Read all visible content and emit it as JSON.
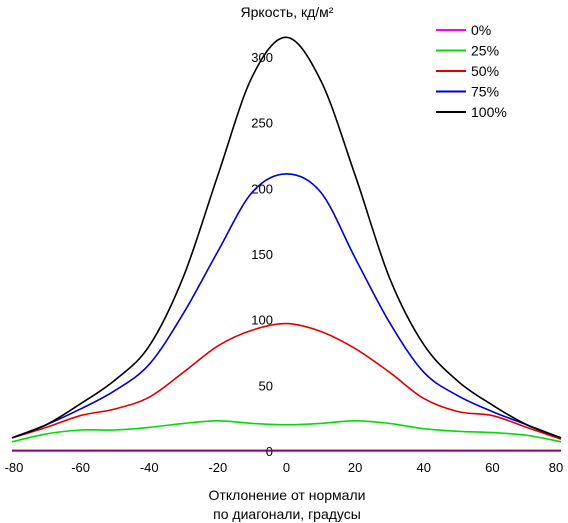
{
  "chart_data": {
    "type": "line",
    "title": "Яркость, кд/м²",
    "xlabel_line1": "Отклонение от нормали",
    "xlabel_line2": "по диагонали, градусы",
    "xlim": [
      -80,
      80
    ],
    "ylim": [
      0,
      320
    ],
    "xticks": [
      -80,
      -60,
      -40,
      -20,
      0,
      20,
      40,
      60,
      80
    ],
    "yticks": [
      0,
      50,
      100,
      150,
      200,
      250,
      300
    ],
    "grid": false,
    "legend_position": "top-right",
    "x": [
      -80,
      -70,
      -60,
      -50,
      -40,
      -30,
      -20,
      -10,
      0,
      10,
      20,
      30,
      40,
      50,
      60,
      70,
      80
    ],
    "series": [
      {
        "name": "0%",
        "color": "#ff00ff",
        "values": [
          0.5,
          0.5,
          0.5,
          0.5,
          0.5,
          0.5,
          0.5,
          0.5,
          0.5,
          0.5,
          0.5,
          0.5,
          0.5,
          0.5,
          0.5,
          0.5,
          0.5
        ]
      },
      {
        "name": "25%",
        "color": "#00dd00",
        "values": [
          7,
          13,
          16,
          16,
          18,
          21,
          23,
          21,
          20,
          21,
          23,
          21,
          17,
          15,
          14,
          12,
          7
        ]
      },
      {
        "name": "50%",
        "color": "#e00000",
        "values": [
          10,
          18,
          27,
          32,
          41,
          60,
          80,
          92,
          97,
          91,
          78,
          60,
          40,
          30,
          27,
          18,
          9
        ]
      },
      {
        "name": "75%",
        "color": "#0000cc",
        "values": [
          10,
          20,
          32,
          46,
          66,
          105,
          152,
          197,
          211,
          197,
          147,
          98,
          60,
          42,
          30,
          20,
          10
        ]
      },
      {
        "name": "100%",
        "color": "#000000",
        "values": [
          10,
          20,
          36,
          54,
          80,
          133,
          210,
          285,
          315,
          282,
          210,
          132,
          81,
          53,
          35,
          20,
          10
        ]
      }
    ]
  }
}
